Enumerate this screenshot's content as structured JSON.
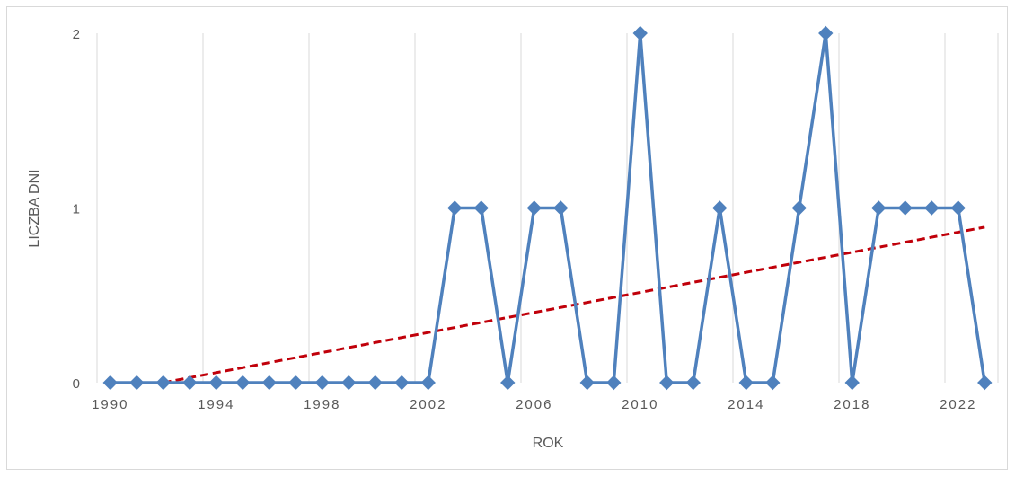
{
  "chart_data": {
    "type": "line",
    "title": "",
    "xlabel": "ROK",
    "ylabel": "LICZBA DNI",
    "x": [
      1990,
      1991,
      1992,
      1993,
      1994,
      1995,
      1996,
      1997,
      1998,
      1999,
      2000,
      2001,
      2002,
      2003,
      2004,
      2005,
      2006,
      2007,
      2008,
      2009,
      2010,
      2011,
      2012,
      2013,
      2014,
      2015,
      2016,
      2017,
      2018,
      2019,
      2020,
      2021,
      2022,
      2023
    ],
    "series": [
      {
        "name": "",
        "color": "#4f81bd",
        "marker": "diamond",
        "values": [
          0,
          0,
          0,
          0,
          0,
          0,
          0,
          0,
          0,
          0,
          0,
          0,
          0,
          1,
          1,
          0,
          1,
          1,
          0,
          0,
          2,
          0,
          0,
          1,
          0,
          0,
          1,
          2,
          0,
          1,
          1,
          1,
          1,
          0
        ]
      }
    ],
    "trendline": {
      "type": "linear",
      "color": "#c0000a",
      "style": "dashed",
      "start": [
        1992,
        0
      ],
      "end": [
        2023,
        0.89
      ]
    },
    "x_ticks": [
      "1990",
      "1994",
      "1998",
      "2002",
      "2006",
      "2010",
      "2014",
      "2018",
      "2022"
    ],
    "y_ticks": [
      "0",
      "1",
      "2"
    ],
    "ylim": [
      0,
      2
    ],
    "grid": "vertical",
    "legend": "none"
  }
}
